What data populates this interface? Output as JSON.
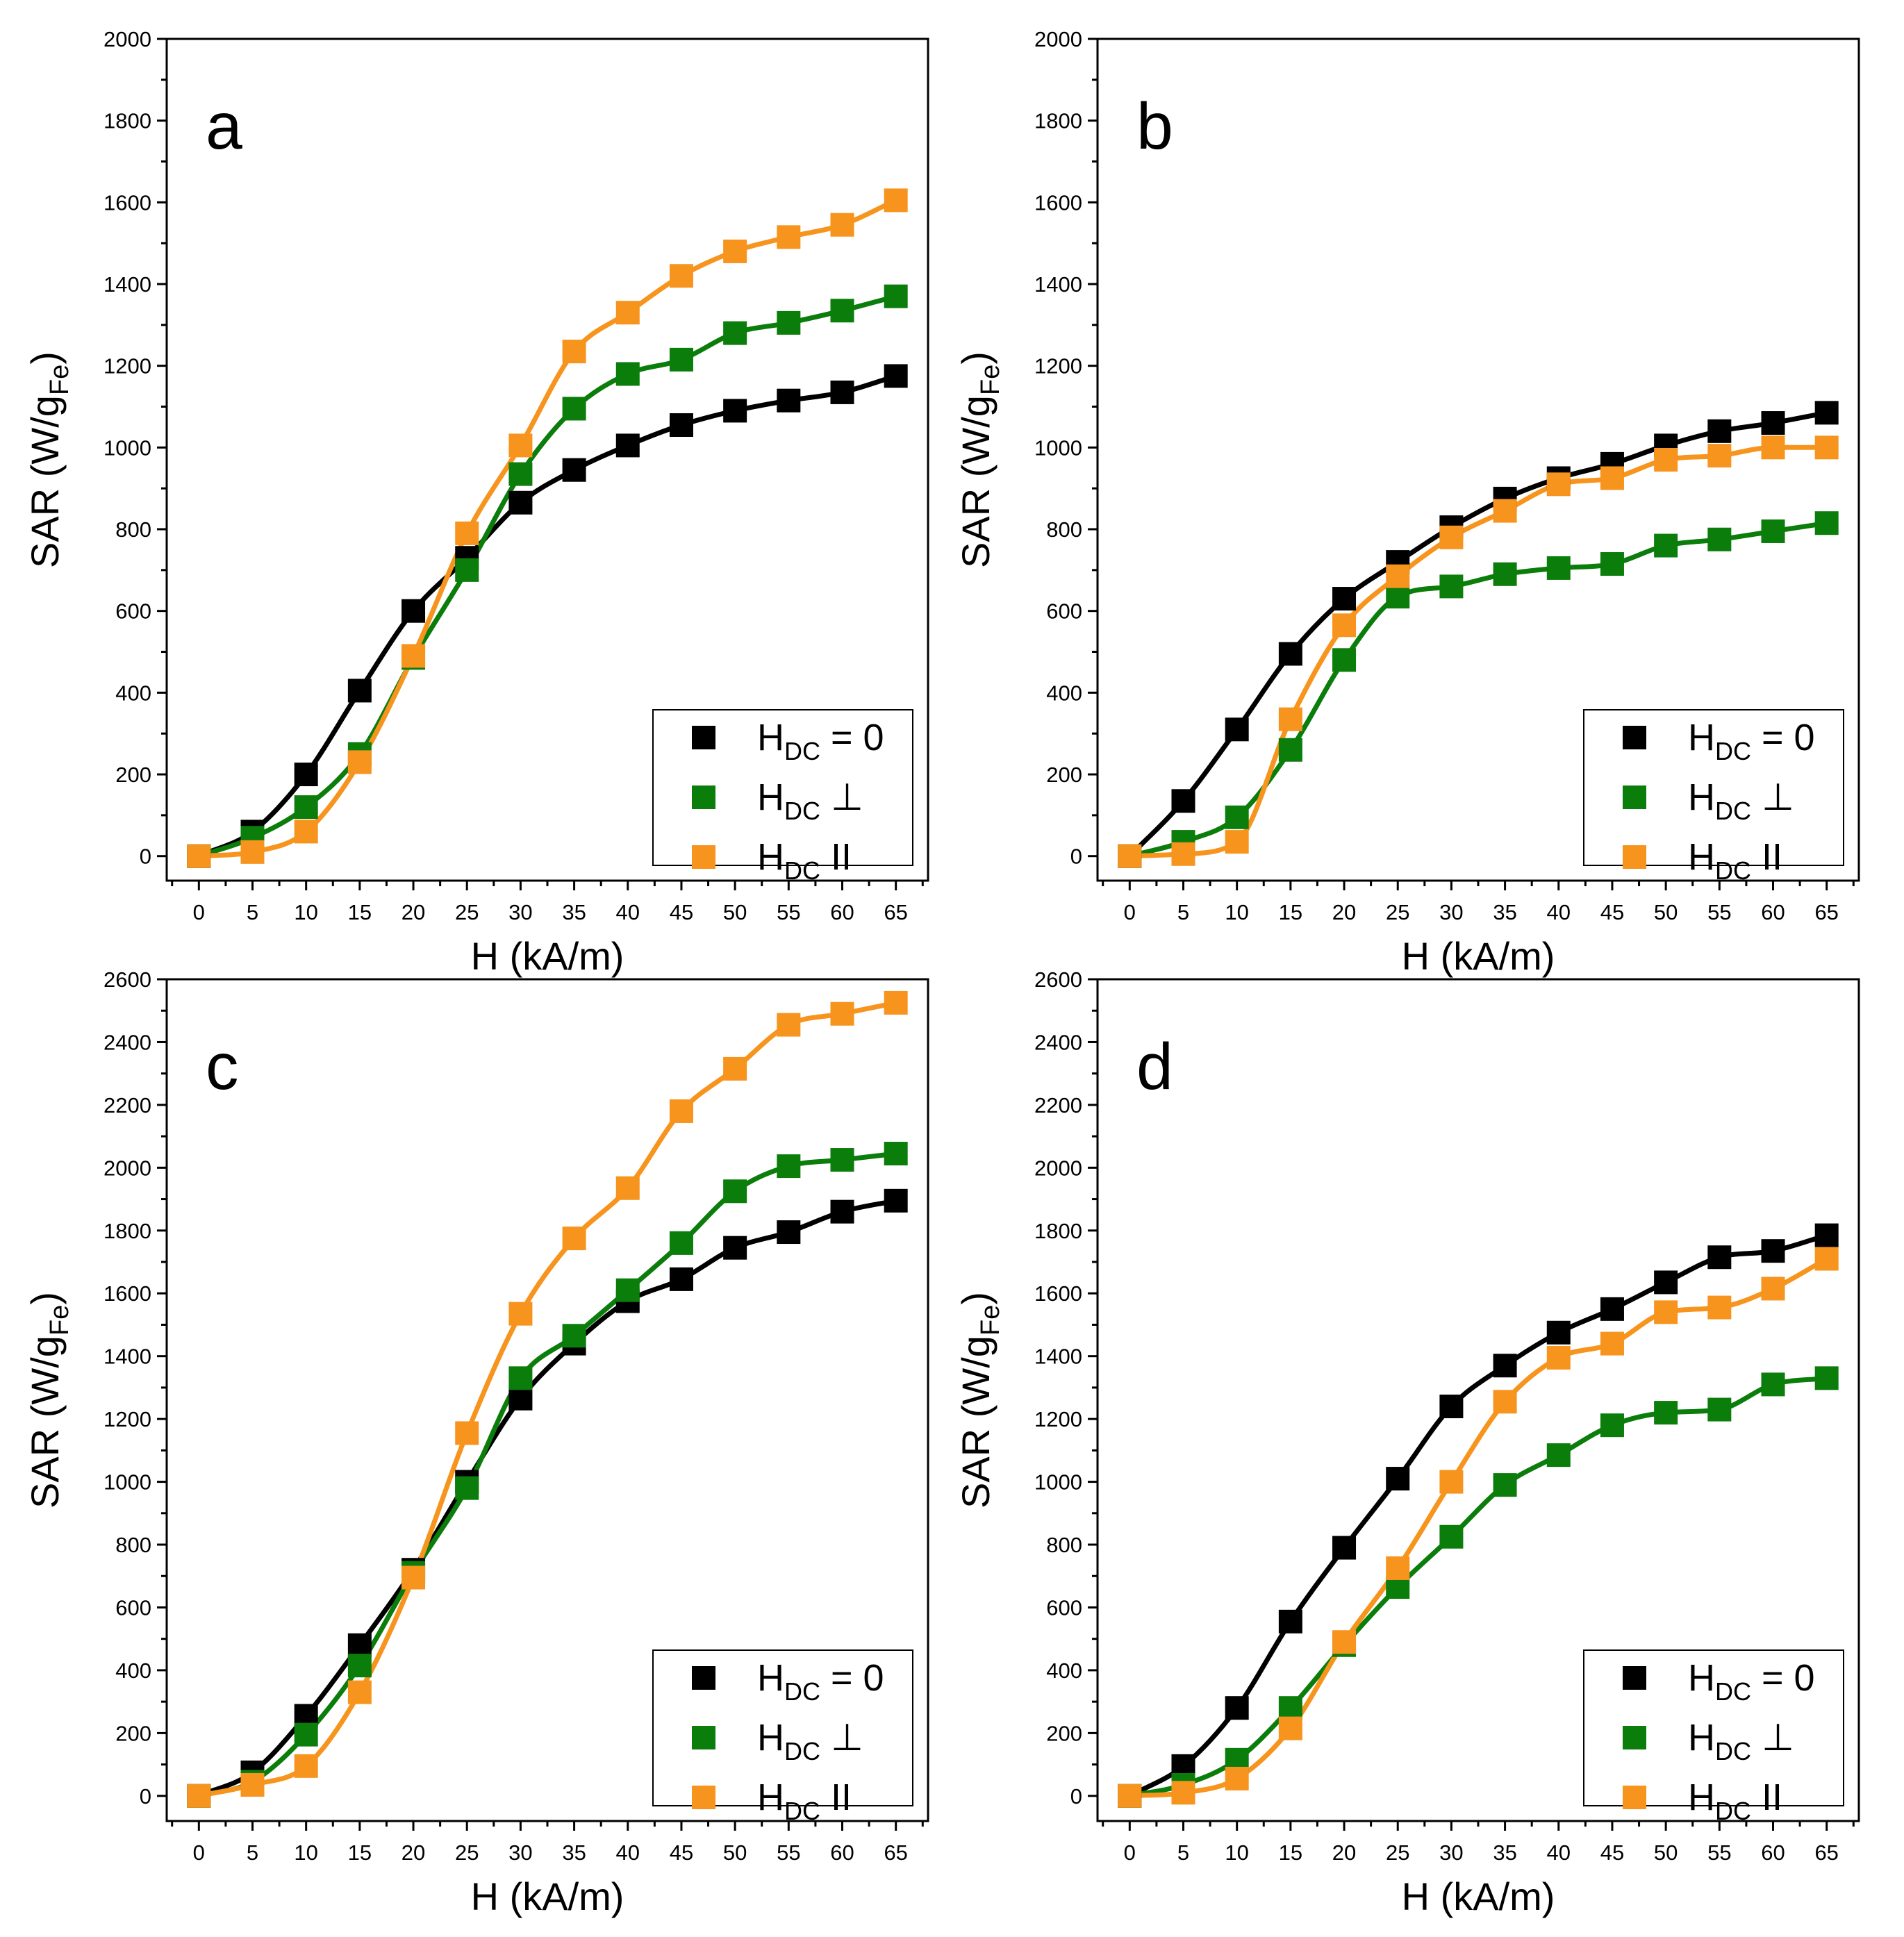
{
  "chart_data": [
    {
      "type": "scatter",
      "panel_label": "a",
      "xlabel": "H (kA/m)",
      "ylabel_main": "SAR (W/g",
      "ylabel_sub": "Fe",
      "ylabel_close": ")",
      "xlim": [
        -3,
        68
      ],
      "ylim": [
        -60,
        2000
      ],
      "xticks": [
        0,
        5,
        10,
        15,
        20,
        25,
        30,
        35,
        40,
        45,
        50,
        55,
        60,
        65
      ],
      "yticks": [
        0,
        200,
        400,
        600,
        800,
        1000,
        1200,
        1400,
        1600,
        1800,
        2000
      ],
      "legend_position": "bottom-right",
      "x": [
        0,
        5,
        10,
        15,
        20,
        25,
        30,
        35,
        40,
        45,
        50,
        55,
        60,
        65
      ],
      "series": [
        {
          "name_main": "H",
          "name_sub": "DC",
          "name_rest": " = 0",
          "color": "#000000",
          "values": [
            0,
            60,
            200,
            405,
            600,
            730,
            865,
            945,
            1005,
            1055,
            1090,
            1115,
            1135,
            1175
          ]
        },
        {
          "name_main": "H",
          "name_sub": "DC",
          "name_rest": " ⊥",
          "color": "#0a7d0a",
          "values": [
            0,
            45,
            120,
            250,
            485,
            700,
            935,
            1095,
            1180,
            1215,
            1280,
            1305,
            1335,
            1370
          ]
        },
        {
          "name_main": "H",
          "name_sub": "DC",
          "name_rest": " II",
          "color": "#f7941d",
          "values": [
            0,
            10,
            60,
            230,
            490,
            790,
            1005,
            1235,
            1330,
            1420,
            1480,
            1515,
            1545,
            1605
          ]
        }
      ]
    },
    {
      "type": "scatter",
      "panel_label": "b",
      "xlabel": "H (kA/m)",
      "ylabel_main": "SAR (W/g",
      "ylabel_sub": "Fe",
      "ylabel_close": ")",
      "xlim": [
        -3,
        68
      ],
      "ylim": [
        -60,
        2000
      ],
      "xticks": [
        0,
        5,
        10,
        15,
        20,
        25,
        30,
        35,
        40,
        45,
        50,
        55,
        60,
        65
      ],
      "yticks": [
        0,
        200,
        400,
        600,
        800,
        1000,
        1200,
        1400,
        1600,
        1800,
        2000
      ],
      "legend_position": "bottom-right",
      "x": [
        0,
        5,
        10,
        15,
        20,
        25,
        30,
        35,
        40,
        45,
        50,
        55,
        60,
        65
      ],
      "series": [
        {
          "name_main": "H",
          "name_sub": "DC",
          "name_rest": " = 0",
          "color": "#000000",
          "values": [
            0,
            135,
            310,
            495,
            630,
            720,
            805,
            875,
            925,
            960,
            1005,
            1040,
            1060,
            1085
          ]
        },
        {
          "name_main": "H",
          "name_sub": "DC",
          "name_rest": " ⊥",
          "color": "#0a7d0a",
          "values": [
            0,
            35,
            95,
            260,
            480,
            635,
            660,
            690,
            705,
            715,
            760,
            775,
            795,
            815
          ]
        },
        {
          "name_main": "H",
          "name_sub": "DC",
          "name_rest": " II",
          "color": "#f7941d",
          "values": [
            0,
            5,
            35,
            335,
            565,
            685,
            780,
            845,
            910,
            925,
            970,
            980,
            1000,
            1000
          ]
        }
      ]
    },
    {
      "type": "scatter",
      "panel_label": "c",
      "xlabel": "H (kA/m)",
      "ylabel_main": "SAR (W/g",
      "ylabel_sub": "Fe",
      "ylabel_close": ")",
      "xlim": [
        -3,
        68
      ],
      "ylim": [
        -80,
        2600
      ],
      "xticks": [
        0,
        5,
        10,
        15,
        20,
        25,
        30,
        35,
        40,
        45,
        50,
        55,
        60,
        65
      ],
      "yticks": [
        0,
        200,
        400,
        600,
        800,
        1000,
        1200,
        1400,
        1600,
        1800,
        2000,
        2200,
        2400,
        2600
      ],
      "legend_position": "bottom-right",
      "x": [
        0,
        5,
        10,
        15,
        20,
        25,
        30,
        35,
        40,
        45,
        50,
        55,
        60,
        65
      ],
      "series": [
        {
          "name_main": "H",
          "name_sub": "DC",
          "name_rest": " = 0",
          "color": "#000000",
          "values": [
            0,
            75,
            255,
            480,
            720,
            1000,
            1265,
            1440,
            1575,
            1645,
            1745,
            1795,
            1860,
            1895
          ]
        },
        {
          "name_main": "H",
          "name_sub": "DC",
          "name_rest": " ⊥",
          "color": "#0a7d0a",
          "values": [
            0,
            45,
            195,
            415,
            710,
            980,
            1330,
            1465,
            1610,
            1760,
            1925,
            2005,
            2025,
            2045
          ]
        },
        {
          "name_main": "H",
          "name_sub": "DC",
          "name_rest": " II",
          "color": "#f7941d",
          "values": [
            0,
            35,
            95,
            330,
            695,
            1155,
            1535,
            1775,
            1935,
            2180,
            2315,
            2455,
            2490,
            2525
          ]
        }
      ]
    },
    {
      "type": "scatter",
      "panel_label": "d",
      "xlabel": "H (kA/m)",
      "ylabel_main": "SAR (W/g",
      "ylabel_sub": "Fe",
      "ylabel_close": ")",
      "xlim": [
        -3,
        68
      ],
      "ylim": [
        -80,
        2600
      ],
      "xticks": [
        0,
        5,
        10,
        15,
        20,
        25,
        30,
        35,
        40,
        45,
        50,
        55,
        60,
        65
      ],
      "yticks": [
        0,
        200,
        400,
        600,
        800,
        1000,
        1200,
        1400,
        1600,
        1800,
        2000,
        2200,
        2400,
        2600
      ],
      "legend_position": "bottom-right",
      "x": [
        0,
        5,
        10,
        15,
        20,
        25,
        30,
        35,
        40,
        45,
        50,
        55,
        60,
        65
      ],
      "series": [
        {
          "name_main": "H",
          "name_sub": "DC",
          "name_rest": " = 0",
          "color": "#000000",
          "values": [
            0,
            95,
            280,
            555,
            790,
            1010,
            1240,
            1370,
            1475,
            1550,
            1635,
            1715,
            1735,
            1785
          ]
        },
        {
          "name_main": "H",
          "name_sub": "DC",
          "name_rest": " ⊥",
          "color": "#0a7d0a",
          "values": [
            0,
            35,
            115,
            280,
            480,
            665,
            825,
            990,
            1085,
            1180,
            1220,
            1230,
            1310,
            1330
          ]
        },
        {
          "name_main": "H",
          "name_sub": "DC",
          "name_rest": " II",
          "color": "#f7941d",
          "values": [
            0,
            10,
            55,
            215,
            490,
            725,
            1000,
            1255,
            1395,
            1440,
            1540,
            1555,
            1615,
            1710
          ]
        }
      ]
    }
  ]
}
